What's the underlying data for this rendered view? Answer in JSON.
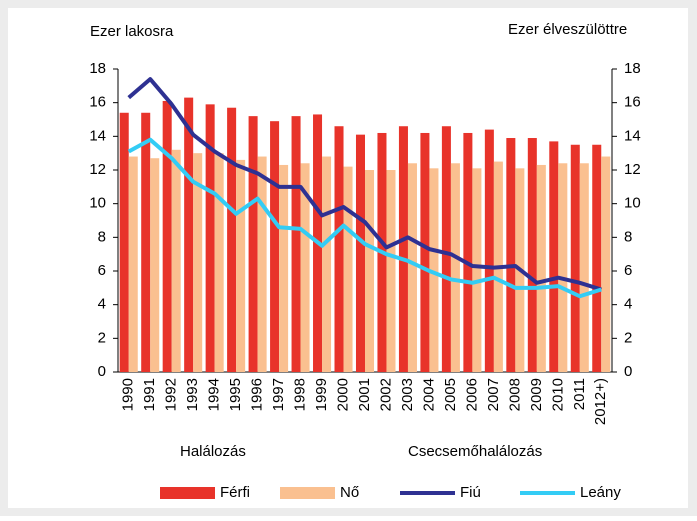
{
  "chart_data": {
    "type": "bar_line",
    "y_label": "Ezer lakosra",
    "y2_label": "Ezer élveszülöttre",
    "annotations": [
      "Halálozás",
      "Csecsemőhalálozás"
    ],
    "categories": [
      "1990",
      "1991",
      "1992",
      "1993",
      "1994",
      "1995",
      "1996",
      "1997",
      "1998",
      "1999",
      "2000",
      "2001",
      "2002",
      "2003",
      "2004",
      "2005",
      "2006",
      "2007",
      "2008",
      "2009",
      "2010",
      "2011",
      "2012+)"
    ],
    "series": [
      {
        "name": "Férfi",
        "type": "bar",
        "color": "#e8332a",
        "values": [
          15.4,
          15.4,
          16.1,
          16.3,
          15.9,
          15.7,
          15.2,
          14.9,
          15.2,
          15.3,
          14.6,
          14.1,
          14.2,
          14.6,
          14.2,
          14.6,
          14.2,
          14.4,
          13.9,
          13.9,
          13.7,
          13.5,
          13.5
        ]
      },
      {
        "name": "Nő",
        "type": "bar",
        "color": "#fac090",
        "values": [
          12.8,
          12.7,
          13.2,
          13.0,
          13.0,
          12.6,
          12.8,
          12.3,
          12.4,
          12.8,
          12.2,
          12.0,
          12.0,
          12.4,
          12.1,
          12.4,
          12.1,
          12.5,
          12.1,
          12.3,
          12.4,
          12.4,
          12.8
        ]
      },
      {
        "name": "Fiú",
        "type": "line",
        "axis": "y2",
        "color": "#2e3192",
        "values": [
          16.3,
          17.4,
          15.9,
          14.1,
          13.1,
          12.3,
          11.8,
          11.0,
          11.0,
          9.3,
          9.8,
          8.9,
          7.4,
          8.0,
          7.3,
          7.0,
          6.3,
          6.2,
          6.3,
          5.3,
          5.6,
          5.3,
          4.9
        ]
      },
      {
        "name": "Leány",
        "type": "line",
        "axis": "y2",
        "color": "#33ccf5",
        "values": [
          13.1,
          13.8,
          12.7,
          11.3,
          10.6,
          9.4,
          10.3,
          8.6,
          8.5,
          7.5,
          8.7,
          7.6,
          7.0,
          6.6,
          6.0,
          5.5,
          5.3,
          5.6,
          5.0,
          5.0,
          5.1,
          4.5,
          4.9
        ]
      }
    ],
    "ylim": [
      0,
      18
    ],
    "yticks": [
      0,
      2,
      4,
      6,
      8,
      10,
      12,
      14,
      16,
      18
    ],
    "y2lim": [
      0,
      18
    ],
    "y2ticks": [
      0,
      2,
      4,
      6,
      8,
      10,
      12,
      14,
      16,
      18
    ],
    "legend": "bottom"
  }
}
